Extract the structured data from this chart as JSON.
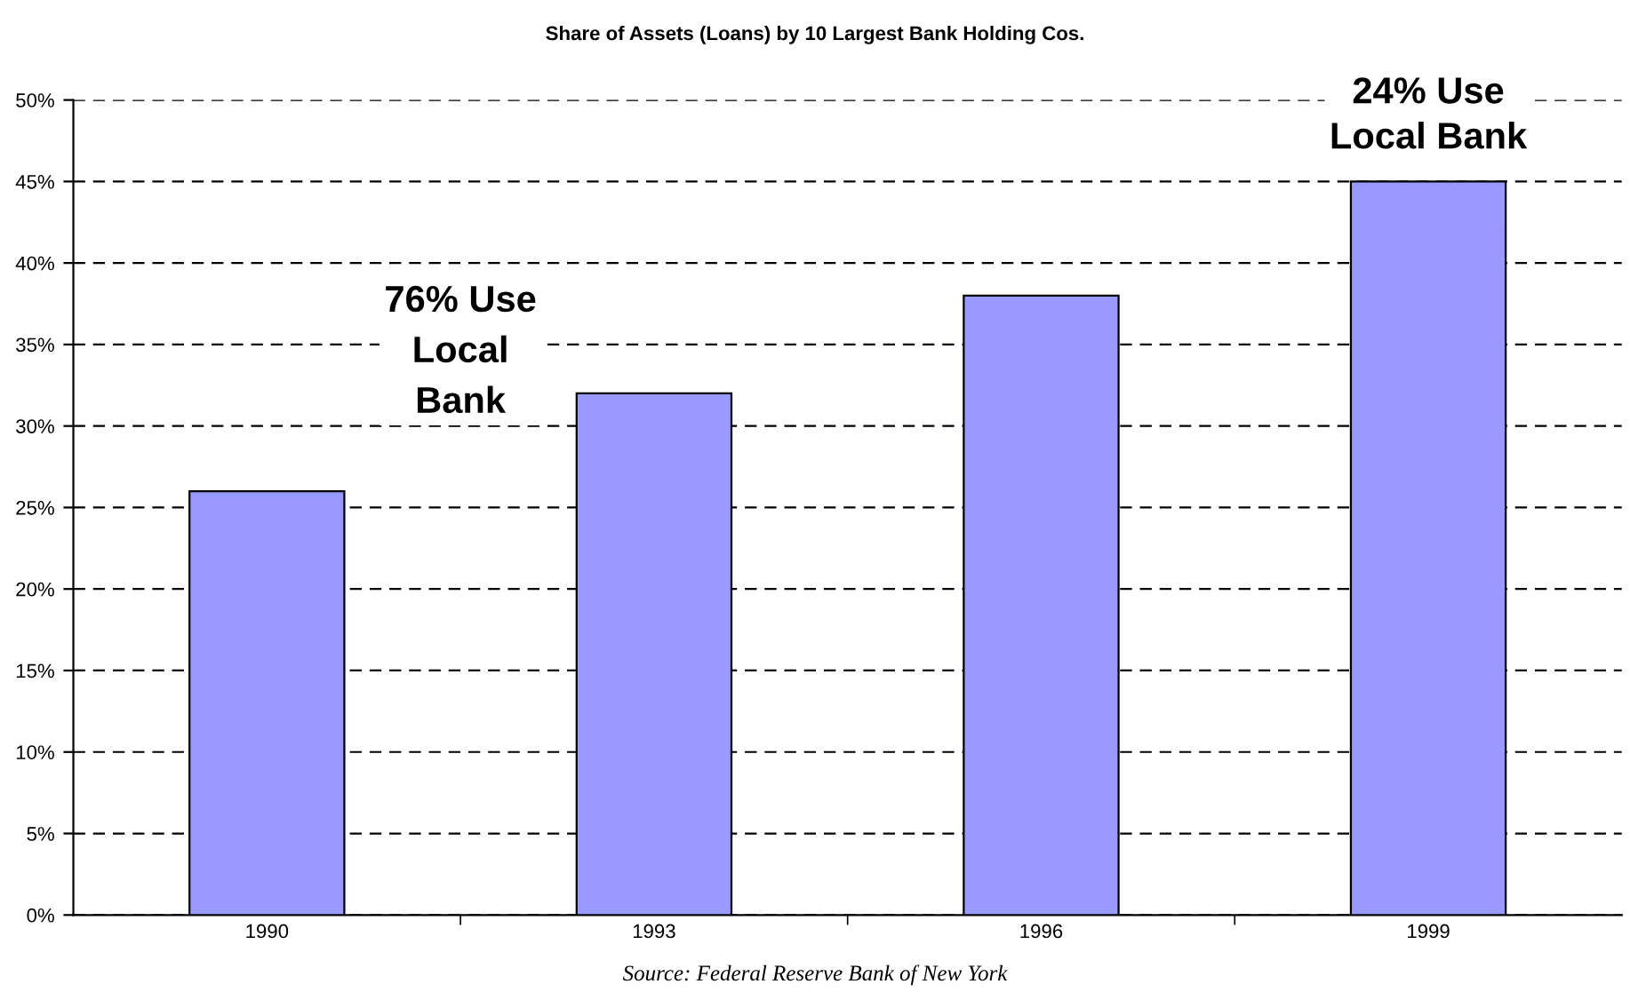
{
  "chart_data": {
    "type": "bar",
    "title": "Share of Assets (Loans) by 10 Largest Bank Holding Cos.",
    "categories": [
      "1990",
      "1993",
      "1996",
      "1999"
    ],
    "values": [
      26,
      32,
      38,
      45
    ],
    "color": "#9999ff",
    "ylim": [
      0,
      50
    ],
    "yticks": [
      {
        "value": 0,
        "label": "0%"
      },
      {
        "value": 5,
        "label": "5%"
      },
      {
        "value": 10,
        "label": "10%"
      },
      {
        "value": 15,
        "label": "15%"
      },
      {
        "value": 20,
        "label": "20%"
      },
      {
        "value": 25,
        "label": "25%"
      },
      {
        "value": 30,
        "label": "30%"
      },
      {
        "value": 35,
        "label": "35%"
      },
      {
        "value": 40,
        "label": "40%"
      },
      {
        "value": 45,
        "label": "45%"
      },
      {
        "value": 50,
        "label": "50%"
      }
    ],
    "grid": "y",
    "legend": false,
    "annotations": [
      "76% Use\nLocal\nBank",
      "24% Use\nLocal Bank",
      "Source: Federal Reserve Bank of New York"
    ]
  }
}
